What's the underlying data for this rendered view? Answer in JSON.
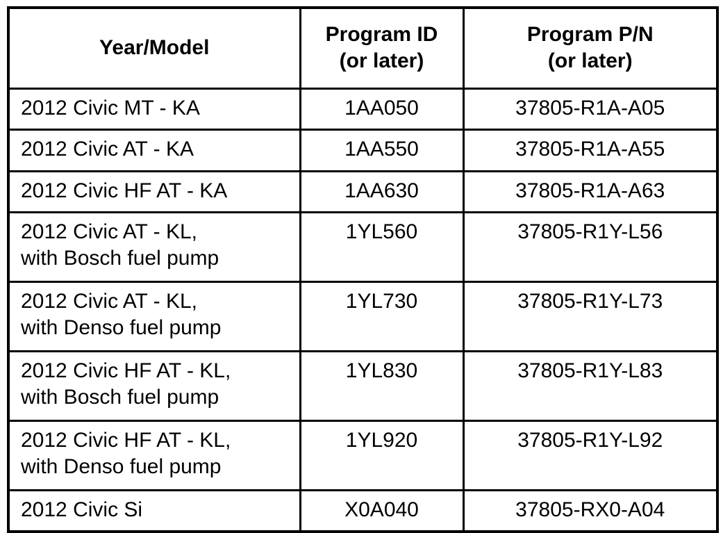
{
  "table": {
    "headers": [
      {
        "label": "Year/Model"
      },
      {
        "label": "Program ID\n(or later)"
      },
      {
        "label": "Program P/N\n(or later)"
      }
    ],
    "rows": [
      {
        "year_model": "2012 Civic MT - KA",
        "program_id": "1AA050",
        "program_pn": "37805-R1A-A05"
      },
      {
        "year_model": "2012 Civic AT - KA",
        "program_id": "1AA550",
        "program_pn": "37805-R1A-A55"
      },
      {
        "year_model": "2012 Civic HF AT - KA",
        "program_id": "1AA630",
        "program_pn": "37805-R1A-A63"
      },
      {
        "year_model": "2012 Civic AT - KL,\nwith Bosch fuel pump",
        "program_id": "1YL560",
        "program_pn": "37805-R1Y-L56"
      },
      {
        "year_model": "2012 Civic AT - KL,\nwith Denso fuel pump",
        "program_id": "1YL730",
        "program_pn": "37805-R1Y-L73"
      },
      {
        "year_model": "2012 Civic HF AT - KL,\nwith Bosch fuel pump",
        "program_id": "1YL830",
        "program_pn": "37805-R1Y-L83"
      },
      {
        "year_model": "2012 Civic HF AT - KL,\nwith Denso fuel pump",
        "program_id": "1YL920",
        "program_pn": "37805-R1Y-L92"
      },
      {
        "year_model": "2012 Civic Si",
        "program_id": "X0A040",
        "program_pn": "37805-RX0-A04"
      }
    ]
  }
}
